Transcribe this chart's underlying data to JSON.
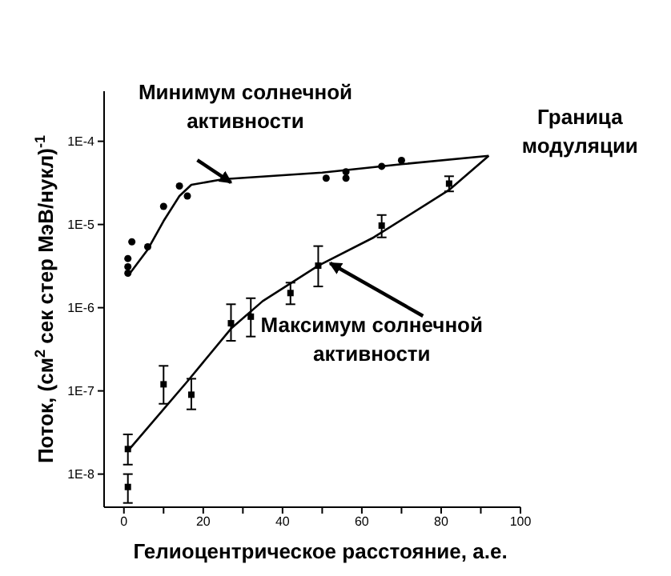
{
  "chart_data": {
    "type": "scatter",
    "xlabel": "Гелиоцентрическое расстояние, а.е.",
    "ylabel": "Поток, (см$^{2}$ сек стер МэВ/нукл)$^{-1}$",
    "xlim": [
      -5,
      100
    ],
    "xticks": [
      0,
      {
        "value": 10,
        "label": null
      },
      20,
      {
        "value": 30,
        "label": null
      },
      40,
      {
        "value": 50,
        "label": null
      },
      60,
      {
        "value": 70,
        "label": null
      },
      80,
      {
        "value": 90,
        "label": null
      },
      100
    ],
    "ylim": [
      4e-09,
      0.0004
    ],
    "yticks": [
      {
        "value": 1e-08,
        "label": "1E-8"
      },
      {
        "value": 1e-07,
        "label": "1E-7"
      },
      {
        "value": 1e-06,
        "label": "1E-6"
      },
      {
        "value": 1e-05,
        "label": "1E-5"
      },
      {
        "value": 0.0001,
        "label": "1E-4"
      }
    ],
    "log": "y",
    "series": [
      {
        "marker": "circle",
        "color": "#000000",
        "x": [
          1,
          1,
          1,
          2,
          6,
          10,
          14,
          16,
          51,
          56,
          56,
          65,
          70
        ],
        "values": [
          2.6e-06,
          3.1e-06,
          3.9e-06,
          6.2e-06,
          5.4e-06,
          1.65e-05,
          2.9e-05,
          2.2e-05,
          3.6e-05,
          3.6e-05,
          4.3e-05,
          5e-05,
          5.9e-05
        ]
      },
      {
        "type": "line",
        "marker": "none",
        "line_style": "solid",
        "color": "#000000",
        "x": [
          1,
          6,
          10,
          14,
          17,
          25,
          50,
          70,
          92
        ],
        "values": [
          2.4e-06,
          5e-06,
          1.1e-05,
          2.2e-05,
          3e-05,
          3.5e-05,
          4.2e-05,
          5.3e-05,
          6.7e-05
        ]
      },
      {
        "marker": "square",
        "color": "#000000",
        "x": [
          1,
          1,
          10,
          17,
          27,
          32,
          42,
          49,
          65,
          82
        ],
        "values": [
          2e-08,
          7e-09,
          1.2e-07,
          9e-08,
          6.5e-07,
          7.8e-07,
          1.5e-06,
          3.2e-06,
          9.7e-06,
          3.1e-05
        ],
        "errors": [
          [
            1.3e-08,
            3e-08
          ],
          [
            4.5e-09,
            1e-08
          ],
          [
            7e-08,
            2e-07
          ],
          [
            6e-08,
            1.4e-07
          ],
          [
            4e-07,
            1.1e-06
          ],
          [
            4.5e-07,
            1.3e-06
          ],
          [
            1.1e-06,
            2e-06
          ],
          [
            1.8e-06,
            5.5e-06
          ],
          [
            7e-06,
            1.3e-05
          ],
          [
            2.5e-05,
            3.8e-05
          ]
        ]
      },
      {
        "type": "line",
        "marker": "none",
        "line_style": "solid",
        "color": "#000000",
        "x": [
          1,
          16,
          27,
          35,
          49,
          63,
          82,
          92
        ],
        "values": [
          1.9e-08,
          1.3e-07,
          5.6e-07,
          1.2e-06,
          3.2e-06,
          7e-06,
          2.6e-05,
          6.7e-05
        ]
      }
    ],
    "annotations": [
      {
        "text": "Минимум солнечной\nактивности",
        "x": 27,
        "y": 2.8e-05
      },
      {
        "text": "Граница\nмодуляции",
        "x": 92,
        "y": 6.7e-05
      },
      {
        "text": "Максимум солнечной\nактивности",
        "x": 52,
        "y": 3e-06
      }
    ]
  }
}
